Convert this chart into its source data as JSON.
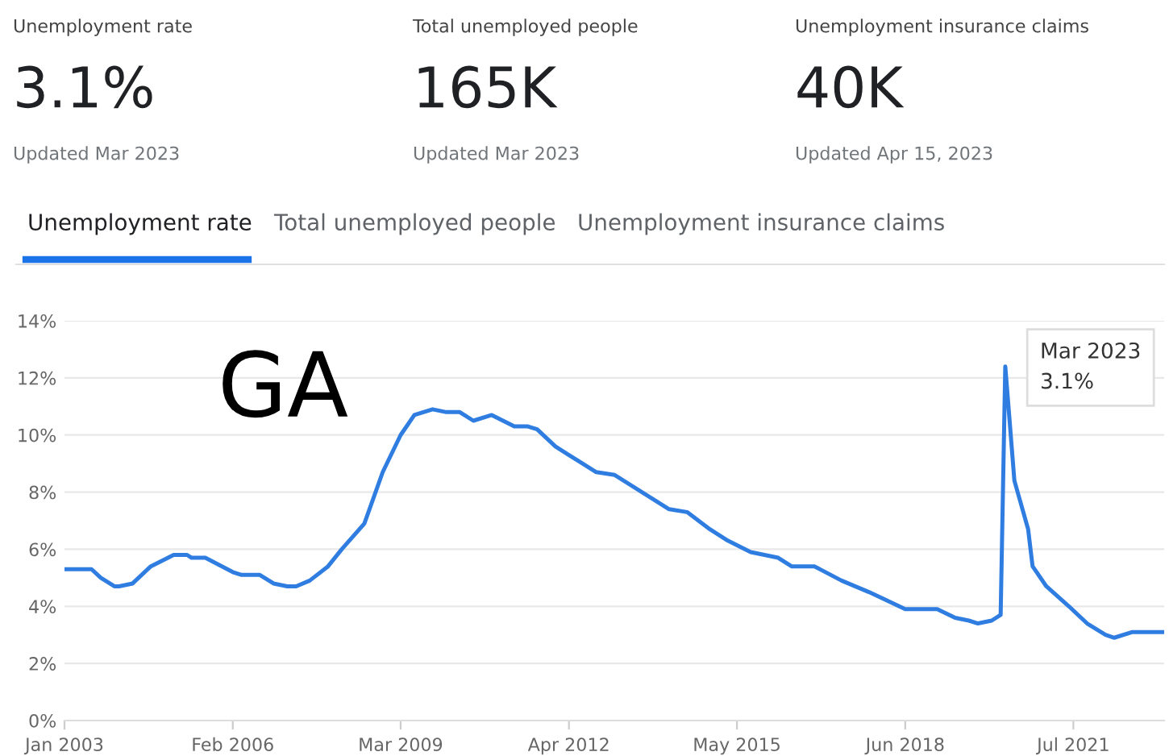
{
  "chart_data": {
    "type": "line",
    "title": "GA",
    "annotations": [
      "Unemployment rate",
      "3.1%",
      "Updated Mar 2023",
      "Total unemployed people",
      "165K",
      "Updated Mar 2023",
      "Unemployment insurance claims",
      "40K",
      "Updated Apr 15, 2023",
      "Unemployment rate",
      "Total unemployed people",
      "Unemployment insurance claims",
      "Mar 2023\n3.1%"
    ],
    "x": [
      "2003-01",
      "2003-07",
      "2003-09",
      "2003-12",
      "2004-01",
      "2004-04",
      "2004-08",
      "2005-01",
      "2005-04",
      "2005-05",
      "2005-08",
      "2006-02",
      "2006-04",
      "2006-08",
      "2006-11",
      "2007-02",
      "2007-04",
      "2007-07",
      "2007-11",
      "2008-02",
      "2008-07",
      "2008-11",
      "2009-03",
      "2009-06",
      "2009-10",
      "2010-01",
      "2010-04",
      "2010-07",
      "2010-11",
      "2011-04",
      "2011-07",
      "2011-09",
      "2012-01",
      "2012-04",
      "2012-06",
      "2012-10",
      "2013-02",
      "2014-02",
      "2014-06",
      "2014-11",
      "2015-03",
      "2015-08",
      "2016-02",
      "2016-05",
      "2016-10",
      "2017-04",
      "2017-10",
      "2018-06",
      "2019-01",
      "2019-05",
      "2019-08",
      "2019-10",
      "2020-01",
      "2020-03",
      "2020-04",
      "2020-06",
      "2020-09",
      "2020-10",
      "2021-01",
      "2021-06",
      "2021-10",
      "2022-02",
      "2022-04",
      "2022-08",
      "2023-03"
    ],
    "series": [
      {
        "color": "#2f7de1",
        "values": [
          5.3,
          5.3,
          5.0,
          4.7,
          4.7,
          4.8,
          5.4,
          5.8,
          5.8,
          5.7,
          5.7,
          5.2,
          5.1,
          5.1,
          4.8,
          4.7,
          4.7,
          4.9,
          5.4,
          6.0,
          6.9,
          8.7,
          10.0,
          10.7,
          10.9,
          10.8,
          10.8,
          10.5,
          10.7,
          10.3,
          10.3,
          10.2,
          9.6,
          9.3,
          9.1,
          8.7,
          8.6,
          7.4,
          7.3,
          6.7,
          6.3,
          5.9,
          5.7,
          5.4,
          5.4,
          4.9,
          4.5,
          3.9,
          3.9,
          3.6,
          3.5,
          3.4,
          3.5,
          3.7,
          12.4,
          8.4,
          6.7,
          5.4,
          4.7,
          4.0,
          3.4,
          3.0,
          2.9,
          3.1,
          3.1
        ]
      }
    ],
    "xlim": [
      "2003-01",
      "2023-03"
    ],
    "xticks": [
      {
        "value": "2003-01",
        "label": "Jan 2003"
      },
      {
        "value": "2006-02",
        "label": "Feb 2006"
      },
      {
        "value": "2009-03",
        "label": "Mar 2009"
      },
      {
        "value": "2012-04",
        "label": "Apr 2012"
      },
      {
        "value": "2015-05",
        "label": "May 2015"
      },
      {
        "value": "2018-06",
        "label": "Jun 2018"
      },
      {
        "value": "2021-07",
        "label": "Jul 2021"
      }
    ],
    "ylim": [
      0,
      14
    ],
    "yticks": [
      {
        "value": 0,
        "label": "0%"
      },
      {
        "value": 2,
        "label": "2%"
      },
      {
        "value": 4,
        "label": "4%"
      },
      {
        "value": 6,
        "label": "6%"
      },
      {
        "value": 8,
        "label": "8%"
      },
      {
        "value": 10,
        "label": "10%"
      },
      {
        "value": 12,
        "label": "12%"
      },
      {
        "value": 14,
        "label": "14%"
      }
    ],
    "grid": "y",
    "marker": "none",
    "line_style": "solid",
    "legend": false
  }
}
